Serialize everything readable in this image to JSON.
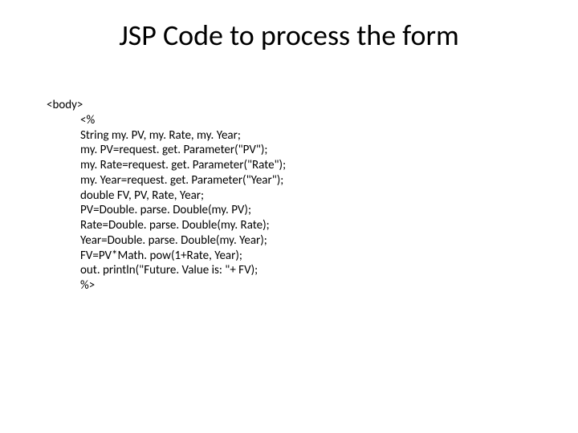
{
  "slide": {
    "title": "JSP Code to process the form",
    "title_fontsize": 36,
    "title_color": "#000000",
    "code_fontsize": 15,
    "code_color": "#000000",
    "background_color": "#ffffff",
    "code_lines": [
      {
        "text": "<body>",
        "indent": false
      },
      {
        "text": "<%",
        "indent": true
      },
      {
        "text": "String my. PV, my. Rate, my. Year;",
        "indent": true
      },
      {
        "text": "my. PV=request. get. Parameter(\"PV\");",
        "indent": true
      },
      {
        "text": "my. Rate=request. get. Parameter(\"Rate\");",
        "indent": true
      },
      {
        "text": "my. Year=request. get. Parameter(\"Year\");",
        "indent": true
      },
      {
        "text": "double FV, PV, Rate, Year;",
        "indent": true
      },
      {
        "text": "PV=Double. parse. Double(my. PV);",
        "indent": true
      },
      {
        "text": "Rate=Double. parse. Double(my. Rate);",
        "indent": true
      },
      {
        "text": "Year=Double. parse. Double(my. Year);",
        "indent": true
      },
      {
        "text": "FV=PV*Math. pow(1+Rate, Year);",
        "indent": true
      },
      {
        "text": "out. println(\"Future. Value is: \"+ FV);",
        "indent": true
      },
      {
        "text": "%>",
        "indent": true
      }
    ]
  }
}
